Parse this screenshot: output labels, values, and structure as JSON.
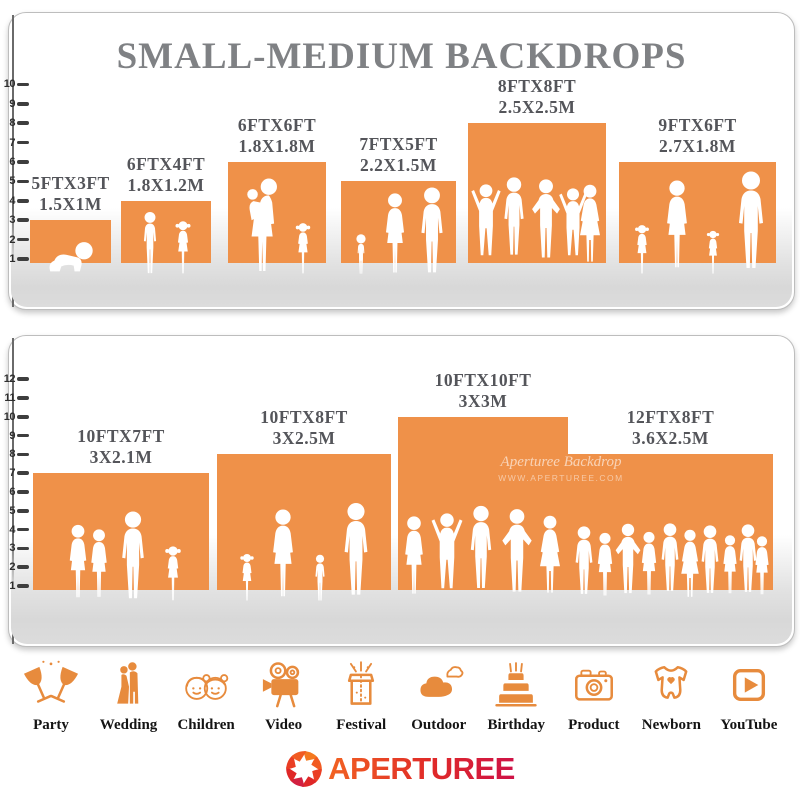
{
  "title": "SMALL-MEDIUM BACKDROPS",
  "top_panel": {
    "ruler_ticks": [
      "10",
      "9",
      "8",
      "7",
      "6",
      "5",
      "4",
      "3",
      "2",
      "1"
    ],
    "backdrops": [
      {
        "size_ft": "5FTX3FT",
        "size_m": "1.5X1M",
        "figures": [
          "crawling-baby"
        ]
      },
      {
        "size_ft": "6FTX4FT",
        "size_m": "1.8X1.2M",
        "figures": [
          "boy",
          "girl"
        ]
      },
      {
        "size_ft": "6FTX6FT",
        "size_m": "1.8X1.8M",
        "figures": [
          "woman-holding-baby",
          "girl"
        ]
      },
      {
        "size_ft": "7FTX5FT",
        "size_m": "2.2X1.5M",
        "figures": [
          "toddler",
          "woman",
          "man"
        ]
      },
      {
        "size_ft": "8FTX8FT",
        "size_m": "2.5X2.5M",
        "figures": [
          "man-arms-up",
          "man",
          "man-hands-on-hips",
          "man-arms-up",
          "woman-dress"
        ]
      },
      {
        "size_ft": "9FTX6FT",
        "size_m": "2.7X1.8M",
        "figures": [
          "girl",
          "woman",
          "girl",
          "man"
        ]
      }
    ]
  },
  "bottom_panel": {
    "ruler_ticks": [
      "12",
      "11",
      "10",
      "9",
      "8",
      "7",
      "6",
      "5",
      "4",
      "3",
      "2",
      "1"
    ],
    "backdrops": [
      {
        "size_ft": "10FTX7FT",
        "size_m": "3X2.1M",
        "figures": [
          "woman",
          "woman",
          "man",
          "girl"
        ]
      },
      {
        "size_ft": "10FTX8FT",
        "size_m": "3X2.5M",
        "figures": [
          "girl",
          "woman",
          "boy",
          "man"
        ]
      },
      {
        "size_ft": "10FTX10FT",
        "size_m": "3X3M",
        "figures": [
          "woman",
          "man-arms-up",
          "man",
          "man-hands-on-hips",
          "woman-dress"
        ]
      },
      {
        "size_ft": "12FTX8FT",
        "size_m": "3.6X2.5M",
        "figures": [
          "man",
          "woman",
          "man-hands-on-hips",
          "woman",
          "man",
          "woman-dress",
          "man",
          "woman",
          "man",
          "woman"
        ]
      }
    ]
  },
  "watermark": {
    "brand": "Aperturee Backdrop",
    "url": "WWW.APERTUREE.COM"
  },
  "categories": [
    {
      "label": "Party",
      "icon": "party-icon"
    },
    {
      "label": "Wedding",
      "icon": "wedding-icon"
    },
    {
      "label": "Children",
      "icon": "children-icon"
    },
    {
      "label": "Video",
      "icon": "video-icon"
    },
    {
      "label": "Festival",
      "icon": "festival-icon"
    },
    {
      "label": "Outdoor",
      "icon": "outdoor-icon"
    },
    {
      "label": "Birthday",
      "icon": "birthday-icon"
    },
    {
      "label": "Product",
      "icon": "product-icon"
    },
    {
      "label": "Newborn",
      "icon": "newborn-icon"
    },
    {
      "label": "YouTube",
      "icon": "youtube-icon"
    }
  ],
  "logo": {
    "text": "APERTUREE",
    "icon": "aperture-icon"
  },
  "colors": {
    "backdrop_orange": "#EF9149",
    "icon_orange": "#E78B3D",
    "title_gray": "#7F8184",
    "label_gray": "#54555A",
    "ground_gray": "#DCDCDC",
    "logo_gradient_start": "#F26322",
    "logo_gradient_end": "#CE1247"
  }
}
